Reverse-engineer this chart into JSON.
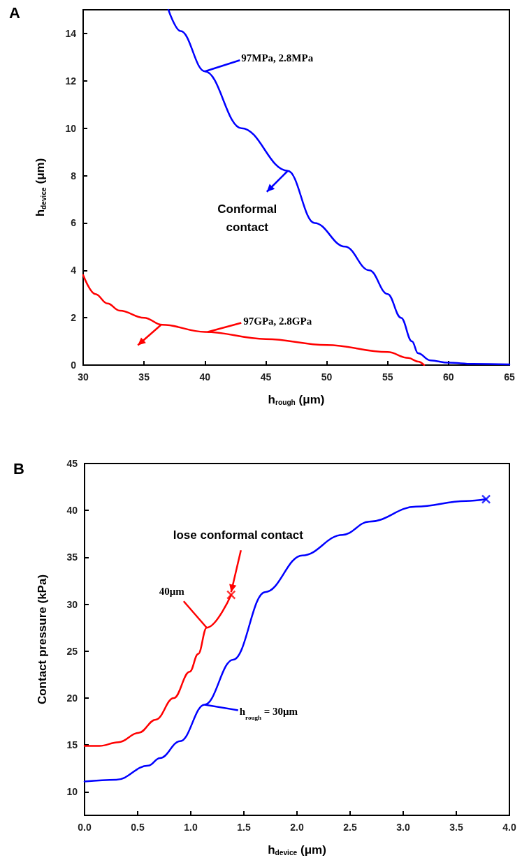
{
  "chart_data": [
    {
      "type": "line",
      "title": "A",
      "xlabel": "h$_{rough}$ (μm)",
      "ylabel": "h$_{device}$ (μm)",
      "xlim": [
        30,
        65
      ],
      "xticks": [
        30,
        35,
        40,
        45,
        50,
        55,
        60,
        65
      ],
      "ylim": [
        0,
        15
      ],
      "yticks": [
        0,
        2,
        4,
        6,
        8,
        10,
        12,
        14
      ],
      "grid": false,
      "marker": "none",
      "line_style": "solid",
      "series": [
        {
          "color": "#0000ff",
          "x": [
            37,
            38,
            40,
            43,
            46.8,
            49,
            51.5,
            53.5,
            55,
            56.1,
            57,
            57.5,
            58.5,
            60,
            62,
            65
          ],
          "values": [
            15,
            14.1,
            12.4,
            10,
            8.2,
            6,
            5,
            4,
            3,
            2,
            1,
            0.5,
            0.2,
            0.1,
            0.05,
            0.03
          ]
        },
        {
          "color": "#ff0000",
          "x": [
            30,
            31,
            32,
            33,
            35,
            36.5,
            40,
            45,
            50,
            55,
            56.7,
            57.5,
            58
          ],
          "values": [
            3.8,
            3,
            2.6,
            2.3,
            2,
            1.7,
            1.4,
            1.1,
            0.85,
            0.55,
            0.3,
            0.15,
            0
          ]
        }
      ],
      "annotations": [
        {
          "text": "97MPa, 2.8MPa",
          "x": 40,
          "y": 12.4
        },
        {
          "text": "97GPa, 2.8GPa",
          "x": 40,
          "y": 1.4
        },
        {
          "text": "Conformal\ncontact",
          "x": 46.8,
          "y": 8.2
        }
      ]
    },
    {
      "type": "line",
      "title": "B",
      "xlabel": "h$_{device}$ (μm)",
      "ylabel": "Contact pressure (kPa)",
      "xlim": [
        0,
        4
      ],
      "xticks": [
        {
          "value": 0,
          "label": "0.0"
        },
        0.5,
        {
          "value": 1,
          "label": "1.0"
        },
        1.5,
        {
          "value": 2,
          "label": "2.0"
        },
        2.5,
        {
          "value": 3,
          "label": "3.0"
        },
        3.5,
        {
          "value": 4,
          "label": "4.0"
        }
      ],
      "ylim": [
        7.5,
        45
      ],
      "yticks": [
        10,
        15,
        20,
        25,
        30,
        35,
        40,
        45
      ],
      "grid": false,
      "marker": "none",
      "line_style": "solid",
      "series": [
        {
          "color": "#0000ff",
          "x": [
            0,
            0.3,
            0.6,
            0.71,
            0.9,
            1.13,
            1.4,
            1.7,
            2.05,
            2.43,
            2.68,
            3.12,
            3.59,
            3.78
          ],
          "values": [
            11.1,
            11.3,
            12.8,
            13.6,
            15.4,
            19.3,
            24.1,
            31.3,
            35.2,
            37.4,
            38.8,
            40.4,
            41,
            41.2
          ]
        },
        {
          "color": "#ff0000",
          "x": [
            0,
            0.14,
            0.32,
            0.51,
            0.67,
            0.84,
            0.99,
            1.07,
            1.15,
            1.38
          ],
          "values": [
            14.9,
            14.9,
            15.3,
            16.3,
            17.7,
            20,
            22.8,
            24.7,
            27.5,
            31
          ]
        },
        {
          "type": "scatter",
          "marker": "cross",
          "color": "#0000ff",
          "x": [
            3.78
          ],
          "values": [
            41.2
          ]
        },
        {
          "type": "scatter",
          "marker": "cross",
          "color": "#ff0000",
          "x": [
            1.38
          ],
          "values": [
            31
          ]
        }
      ],
      "annotations": [
        {
          "text": "lose conformal contact",
          "x": 1.38,
          "y": 31
        },
        {
          "text": "40μm",
          "x": 1.15,
          "y": 27.5
        },
        {
          "text": "h$_{rough}$ = 30μm",
          "x": 1.13,
          "y": 19.3
        }
      ]
    }
  ]
}
